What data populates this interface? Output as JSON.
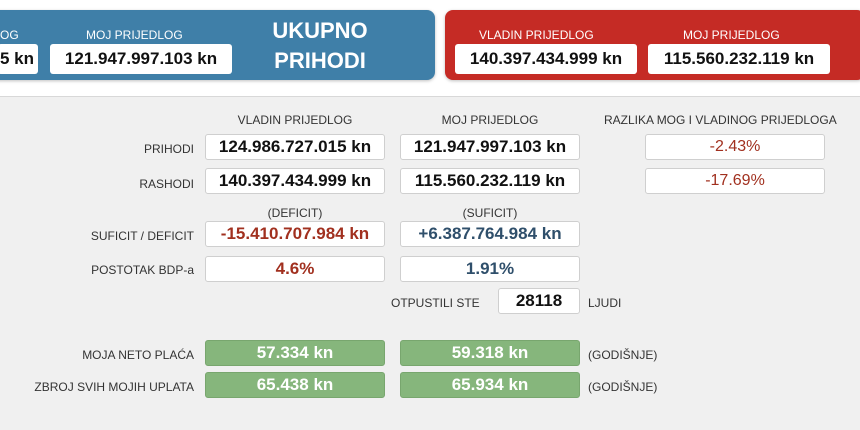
{
  "top": {
    "left_partial_label": "OG",
    "left_partial_value": "5 kn",
    "left_moj_label": "MOJ PRIJEDLOG",
    "left_moj_value": "121.947.997.103 kn",
    "ukupno_line1": "UKUPNO",
    "ukupno_line2": "PRIHODI",
    "right_vladin_label": "VLADIN PRIJEDLOG",
    "right_vladin_value": "140.397.434.999 kn",
    "right_moj_label": "MOJ PRIJEDLOG",
    "right_moj_value": "115.560.232.119 kn",
    "colors": {
      "blue_panel": "#3f7fa8",
      "red_panel": "#c52b25"
    }
  },
  "headers": {
    "vladin": "VLADIN PRIJEDLOG",
    "moj": "MOJ PRIJEDLOG",
    "razlika": "RAZLIKA MOG I VLADINOG PRIJEDLOGA"
  },
  "rows": {
    "prihodi": {
      "label": "PRIHODI",
      "vladin": "124.986.727.015 kn",
      "moj": "121.947.997.103 kn",
      "razlika": "-2.43%"
    },
    "rashodi": {
      "label": "RASHODI",
      "vladin": "140.397.434.999 kn",
      "moj": "115.560.232.119 kn",
      "razlika": "-17.69%"
    },
    "suficit": {
      "label": "SUFICIT / DEFICIT",
      "vladin_note": "(DEFICIT)",
      "moj_note": "(SUFICIT)",
      "vladin": "-15.410.707.984 kn",
      "moj": "+6.387.764.984 kn"
    },
    "bdp": {
      "label": "POSTOTAK BDP-a",
      "vladin": "4.6%",
      "moj": "1.91%"
    }
  },
  "otpustili": {
    "label": "OTPUSTILI STE",
    "value": "28118",
    "unit": "LJUDI"
  },
  "placa": {
    "label": "MOJA NETO PLAĆA",
    "vladin": "57.334 kn",
    "moj": "59.318 kn",
    "note": "(GODIŠNJE)"
  },
  "uplate": {
    "label": "ZBROJ SVIH MOJIH UPLATA",
    "vladin": "65.438 kn",
    "moj": "65.934 kn",
    "note": "(GODIŠNJE)"
  }
}
